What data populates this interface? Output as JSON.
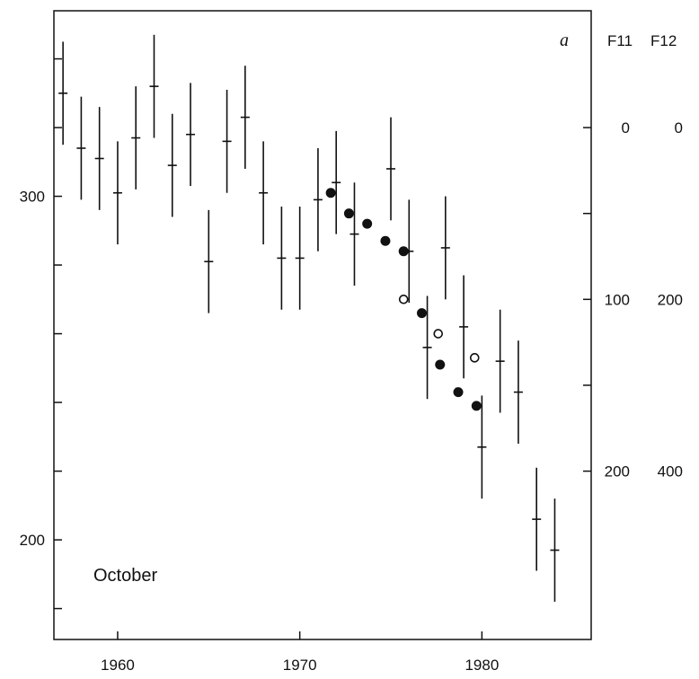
{
  "chart_data": {
    "type": "scatter",
    "panel_label": "a",
    "annotation": "October",
    "xlim": [
      1956.5,
      1986
    ],
    "ylim": [
      171,
      354
    ],
    "x_ticks": [
      1960,
      1970,
      1980
    ],
    "x_tick_labels": [
      "1960",
      "1970",
      "1980"
    ],
    "y_ticks_left": [
      180,
      200,
      220,
      240,
      260,
      280,
      300,
      320,
      340
    ],
    "y_tick_labels_left": [
      {
        "value": 200,
        "label": "200"
      },
      {
        "value": 300,
        "label": "300"
      }
    ],
    "right_axis": {
      "column_headers": [
        "F11",
        "F12"
      ],
      "tick_values": [
        320,
        295,
        270,
        245,
        220
      ],
      "labels": [
        {
          "value": 320,
          "f11": "0",
          "f12": "0"
        },
        {
          "value": 270,
          "f11": "100",
          "f12": "200"
        },
        {
          "value": 220,
          "f11": "200",
          "f12": "400"
        }
      ]
    },
    "series": [
      {
        "marker": "cross-errorbar",
        "points": [
          {
            "x": 1957,
            "y": 330,
            "err": 15
          },
          {
            "x": 1958,
            "y": 314,
            "err": 15
          },
          {
            "x": 1959,
            "y": 311,
            "err": 15
          },
          {
            "x": 1960,
            "y": 301,
            "err": 15
          },
          {
            "x": 1961,
            "y": 317,
            "err": 15
          },
          {
            "x": 1962,
            "y": 332,
            "err": 15
          },
          {
            "x": 1963,
            "y": 309,
            "err": 15
          },
          {
            "x": 1964,
            "y": 318,
            "err": 15
          },
          {
            "x": 1965,
            "y": 281,
            "err": 15
          },
          {
            "x": 1966,
            "y": 316,
            "err": 15
          },
          {
            "x": 1967,
            "y": 323,
            "err": 15
          },
          {
            "x": 1968,
            "y": 301,
            "err": 15
          },
          {
            "x": 1969,
            "y": 282,
            "err": 15
          },
          {
            "x": 1970,
            "y": 282,
            "err": 15
          },
          {
            "x": 1971,
            "y": 299,
            "err": 15
          },
          {
            "x": 1972,
            "y": 304,
            "err": 15
          },
          {
            "x": 1973,
            "y": 289,
            "err": 15
          },
          {
            "x": 1975,
            "y": 308,
            "err": 15
          },
          {
            "x": 1976,
            "y": 284,
            "err": 15
          },
          {
            "x": 1977,
            "y": 256,
            "err": 15
          },
          {
            "x": 1978,
            "y": 285,
            "err": 15
          },
          {
            "x": 1979,
            "y": 262,
            "err": 15
          },
          {
            "x": 1980,
            "y": 227,
            "err": 15
          },
          {
            "x": 1981,
            "y": 252,
            "err": 15
          },
          {
            "x": 1982,
            "y": 243,
            "err": 15
          },
          {
            "x": 1983,
            "y": 206,
            "err": 15
          },
          {
            "x": 1984,
            "y": 197,
            "err": 15
          }
        ]
      },
      {
        "marker": "filled-circle",
        "points": [
          {
            "x": 1971.7,
            "y": 301
          },
          {
            "x": 1972.7,
            "y": 295
          },
          {
            "x": 1973.7,
            "y": 292
          },
          {
            "x": 1974.7,
            "y": 287
          },
          {
            "x": 1975.7,
            "y": 284
          },
          {
            "x": 1976.7,
            "y": 266
          },
          {
            "x": 1977.7,
            "y": 251
          },
          {
            "x": 1978.7,
            "y": 243
          },
          {
            "x": 1979.7,
            "y": 239
          }
        ]
      },
      {
        "marker": "open-circle",
        "points": [
          {
            "x": 1975.7,
            "y": 270
          },
          {
            "x": 1977.6,
            "y": 260
          },
          {
            "x": 1979.6,
            "y": 253
          }
        ]
      }
    ]
  }
}
